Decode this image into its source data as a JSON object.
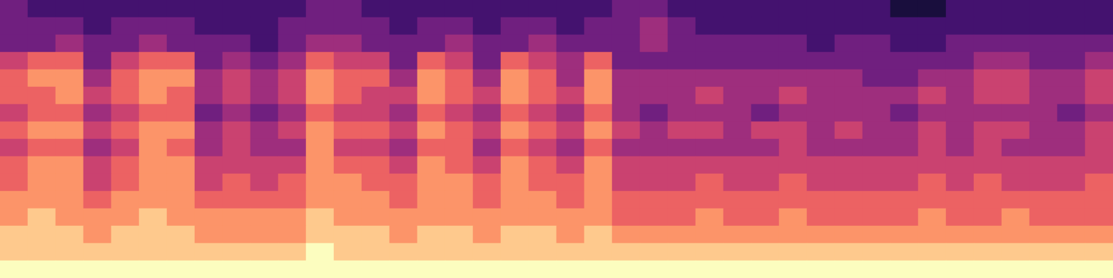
{
  "chart_data": {
    "type": "heatmap",
    "tick_labels": false,
    "grid": false,
    "color_range": [
      0,
      9
    ],
    "cells": [
      [
        3,
        2,
        2,
        2,
        2,
        2,
        2,
        2,
        2,
        2,
        2,
        3,
        3,
        2,
        2,
        2,
        2,
        2,
        2,
        2,
        2,
        2,
        3,
        3,
        2,
        2,
        2,
        2,
        2,
        2,
        2,
        2,
        1,
        1,
        2,
        2,
        2,
        2,
        2,
        2
      ],
      [
        3,
        3,
        3,
        2,
        3,
        3,
        3,
        2,
        2,
        2,
        3,
        3,
        3,
        3,
        2,
        3,
        3,
        2,
        3,
        3,
        2,
        3,
        3,
        4,
        3,
        2,
        2,
        2,
        2,
        2,
        2,
        2,
        2,
        2,
        2,
        2,
        2,
        2,
        2,
        2
      ],
      [
        3,
        3,
        4,
        3,
        3,
        4,
        3,
        3,
        3,
        2,
        3,
        4,
        4,
        3,
        3,
        3,
        4,
        3,
        3,
        4,
        3,
        3,
        3,
        4,
        3,
        3,
        3,
        3,
        3,
        2,
        3,
        3,
        2,
        2,
        3,
        3,
        3,
        3,
        3,
        3
      ],
      [
        5,
        6,
        6,
        3,
        5,
        6,
        6,
        3,
        4,
        3,
        4,
        6,
        5,
        5,
        3,
        6,
        5,
        3,
        6,
        5,
        4,
        6,
        3,
        3,
        3,
        3,
        3,
        3,
        3,
        3,
        3,
        3,
        3,
        3,
        3,
        4,
        4,
        3,
        3,
        4
      ],
      [
        6,
        7,
        7,
        4,
        6,
        7,
        7,
        4,
        5,
        4,
        5,
        7,
        6,
        6,
        4,
        7,
        6,
        4,
        7,
        6,
        4,
        7,
        4,
        4,
        4,
        4,
        4,
        4,
        4,
        4,
        4,
        3,
        3,
        4,
        4,
        5,
        5,
        4,
        4,
        5
      ],
      [
        6,
        6,
        7,
        5,
        6,
        7,
        6,
        4,
        5,
        4,
        5,
        7,
        6,
        5,
        5,
        7,
        6,
        5,
        7,
        6,
        5,
        7,
        4,
        4,
        4,
        5,
        4,
        4,
        5,
        4,
        4,
        4,
        4,
        5,
        4,
        5,
        5,
        4,
        4,
        5
      ],
      [
        5,
        6,
        6,
        4,
        5,
        6,
        6,
        3,
        4,
        3,
        4,
        6,
        5,
        5,
        4,
        6,
        5,
        4,
        6,
        5,
        4,
        6,
        4,
        3,
        4,
        4,
        4,
        3,
        4,
        4,
        4,
        4,
        3,
        4,
        4,
        4,
        4,
        4,
        3,
        4
      ],
      [
        6,
        7,
        7,
        5,
        6,
        7,
        7,
        4,
        5,
        4,
        5,
        7,
        6,
        6,
        5,
        7,
        6,
        5,
        7,
        6,
        5,
        7,
        5,
        4,
        5,
        5,
        4,
        5,
        5,
        4,
        5,
        4,
        4,
        5,
        4,
        5,
        5,
        4,
        4,
        5
      ],
      [
        5,
        6,
        6,
        4,
        5,
        7,
        6,
        4,
        5,
        4,
        4,
        7,
        5,
        5,
        4,
        6,
        6,
        4,
        6,
        5,
        4,
        6,
        4,
        4,
        4,
        4,
        4,
        4,
        5,
        4,
        4,
        4,
        4,
        5,
        4,
        5,
        4,
        4,
        4,
        5
      ],
      [
        6,
        7,
        7,
        5,
        6,
        7,
        7,
        5,
        5,
        5,
        5,
        7,
        6,
        6,
        5,
        7,
        6,
        5,
        7,
        6,
        5,
        7,
        5,
        5,
        5,
        5,
        5,
        5,
        5,
        5,
        5,
        5,
        5,
        5,
        5,
        5,
        5,
        5,
        5,
        5
      ],
      [
        6,
        7,
        7,
        5,
        6,
        7,
        7,
        5,
        6,
        5,
        6,
        7,
        7,
        6,
        6,
        7,
        7,
        6,
        7,
        6,
        6,
        7,
        5,
        5,
        5,
        6,
        5,
        5,
        6,
        5,
        5,
        5,
        5,
        6,
        5,
        6,
        5,
        5,
        5,
        6
      ],
      [
        7,
        7,
        7,
        6,
        7,
        7,
        7,
        6,
        6,
        6,
        6,
        7,
        7,
        7,
        6,
        7,
        7,
        6,
        7,
        7,
        6,
        7,
        6,
        6,
        6,
        6,
        6,
        6,
        6,
        6,
        6,
        6,
        6,
        6,
        6,
        6,
        6,
        6,
        6,
        6
      ],
      [
        7,
        8,
        7,
        7,
        7,
        8,
        7,
        7,
        7,
        7,
        7,
        8,
        7,
        7,
        7,
        7,
        7,
        7,
        7,
        7,
        7,
        7,
        6,
        6,
        6,
        7,
        6,
        6,
        7,
        6,
        6,
        6,
        6,
        7,
        6,
        6,
        7,
        6,
        6,
        6
      ],
      [
        8,
        8,
        8,
        7,
        8,
        8,
        8,
        7,
        7,
        7,
        7,
        8,
        8,
        8,
        7,
        8,
        8,
        7,
        8,
        8,
        7,
        8,
        7,
        7,
        7,
        7,
        7,
        7,
        7,
        7,
        7,
        7,
        7,
        7,
        7,
        7,
        7,
        7,
        7,
        7
      ],
      [
        8,
        8,
        8,
        8,
        8,
        8,
        8,
        8,
        8,
        8,
        8,
        9,
        8,
        8,
        8,
        8,
        8,
        8,
        8,
        8,
        8,
        8,
        8,
        8,
        8,
        8,
        8,
        8,
        8,
        8,
        8,
        8,
        8,
        8,
        8,
        8,
        8,
        8,
        8,
        8
      ],
      [
        9,
        9,
        9,
        9,
        9,
        9,
        9,
        9,
        9,
        9,
        9,
        9,
        9,
        9,
        9,
        9,
        9,
        9,
        9,
        9,
        9,
        9,
        9,
        9,
        9,
        9,
        9,
        9,
        9,
        9,
        9,
        9,
        9,
        9,
        9,
        9,
        9,
        9,
        9,
        9
      ]
    ]
  }
}
